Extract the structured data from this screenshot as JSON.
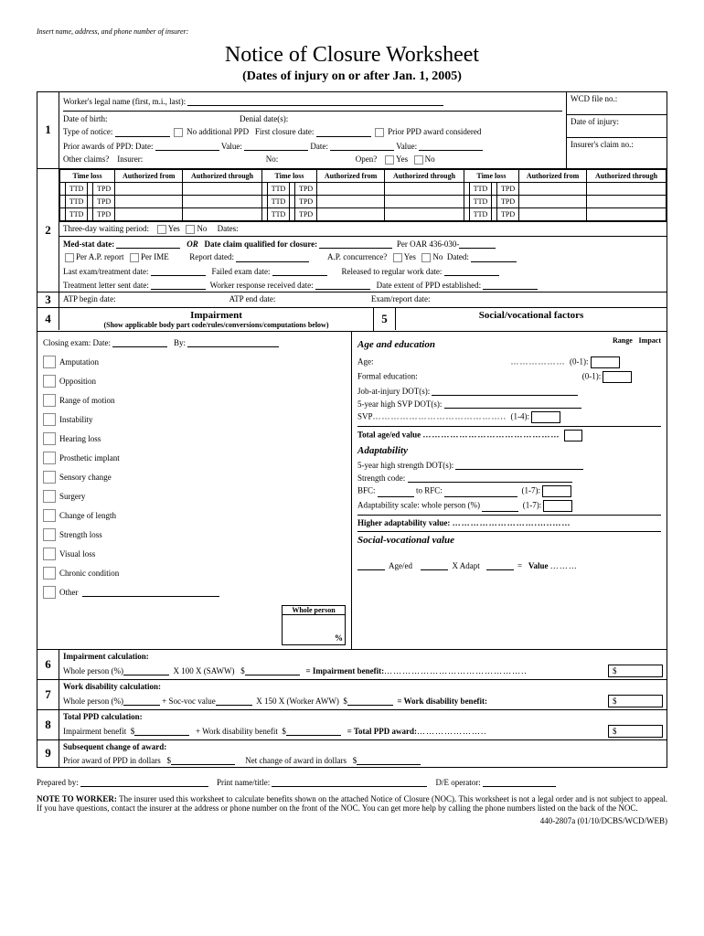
{
  "header_note": "Insert name, address, and phone number of insurer:",
  "title": "Notice of Closure Worksheet",
  "subtitle": "(Dates of injury on or after Jan. 1, 2005)",
  "s1": {
    "name_label": "Worker's legal name (first, m.i., last):",
    "wcd": "WCD file no.:",
    "dob": "Date of birth:",
    "denial": "Denial date(s):",
    "doi": "Date of injury:",
    "type": "Type of notice:",
    "no_ppd": "No additional PPD",
    "first_closure": "First closure date:",
    "prior_ppd": "Prior PPD award considered",
    "prior_awards": "Prior awards of PPD:  Date:",
    "value": "Value:",
    "date2": "Date:",
    "insurer_claim": "Insurer's claim no.:",
    "other_claims": "Other claims?",
    "insurer": "Insurer:",
    "no": "No:",
    "open": "Open?",
    "yes": "Yes",
    "no2": "No"
  },
  "s2": {
    "time_loss": "Time loss",
    "auth_from": "Authorized from",
    "auth_through": "Authorized through",
    "ttd": "TTD",
    "tpd": "TPD",
    "three_day": "Three-day waiting period:",
    "yes": "Yes",
    "no": "No",
    "dates": "Dates:",
    "med_stat": "Med-stat date:",
    "or": "OR",
    "date_claim": "Date claim qualified for closure:",
    "per_oar": "Per OAR 436-030-",
    "per_ap": "Per A.P. report",
    "per_ime": "Per IME",
    "report_dated": "Report dated:",
    "ap_conc": "A.P. concurrence?",
    "dated": "Dated:",
    "last_exam": "Last exam/treatment date:",
    "failed_exam": "Failed exam date:",
    "released": "Released to regular work date:",
    "treatment_letter": "Treatment letter sent date:",
    "worker_resp": "Worker response received date:",
    "date_extent": "Date extent of PPD established:"
  },
  "s3": {
    "atp_begin": "ATP begin date:",
    "atp_end": "ATP end date:",
    "exam_report": "Exam/report date:"
  },
  "s4": {
    "title": "Impairment",
    "sub": "(Show applicable body part code/rules/conversions/computations below)",
    "closing": "Closing exam:  Date:",
    "by": "By:",
    "items": [
      "Amputation",
      "Opposition",
      "Range of motion",
      "Instability",
      "Hearing loss",
      "Prosthetic implant",
      "Sensory change",
      "Surgery",
      "Change of length",
      "Strength loss",
      "Visual loss",
      "Chronic condition",
      "Other"
    ],
    "whole_person": "Whole person",
    "pct": "%"
  },
  "s5": {
    "title": "Social/vocational factors",
    "age_ed": "Age and education",
    "range": "Range",
    "impact": "Impact",
    "age": "Age:",
    "r01": "(0-1):",
    "formal": "Formal education:",
    "job_dot": "Job-at-injury DOT(s):",
    "svp_dot": "5-year high SVP DOT(s):",
    "svp": "SVP",
    "r14": "(1-4):",
    "total_age": "Total age/ed value",
    "adapt": "Adaptability",
    "strength_dot": "5-year high strength DOT(s):",
    "strength_code": "Strength code:",
    "bfc": "BFC:",
    "to_rfc": "to RFC:",
    "r17": "(1-7):",
    "adapt_scale": "Adaptability scale: whole person (%)",
    "higher": "Higher adaptability value:",
    "sv_val": "Social-vocational value",
    "aged": "Age/ed",
    "xadapt": "X Adapt",
    "eq": "=",
    "value": "Value"
  },
  "s6": {
    "title": "Impairment calculation:",
    "wp": "Whole person (%)",
    "x100": "X 100 X (SAWW)",
    "dollar": "$",
    "eq": "= Impairment benefit:"
  },
  "s7": {
    "title": "Work disability calculation:",
    "wp": "Whole person (%)",
    "soc": "+ Soc-voc value",
    "x150": "X 150 X (Worker AWW)",
    "dollar": "$",
    "eq": "= Work disability benefit:"
  },
  "s8": {
    "title": "Total PPD calculation:",
    "imp": "Impairment benefit",
    "plus": "+ Work disability benefit",
    "dollar": "$",
    "eq": "= Total PPD award:"
  },
  "s9": {
    "title": "Subsequent change of award:",
    "prior": "Prior award of PPD in dollars",
    "net": "Net change of award in dollars",
    "dollar": "$"
  },
  "footer": {
    "prepared": "Prepared by:",
    "print": "Print name/title:",
    "de": "D/E operator:",
    "note_label": "NOTE TO WORKER:",
    "note": " The insurer used this worksheet to calculate benefits shown on the attached Notice of Closure (NOC). This worksheet is not a legal order and is not subject to appeal. If you have questions, contact the insurer at the address or phone number on the front of the NOC. You can get more help by calling the phone numbers listed on the back of the NOC.",
    "form_id": "440-2807a (01/10/DCBS/WCD/WEB)"
  }
}
